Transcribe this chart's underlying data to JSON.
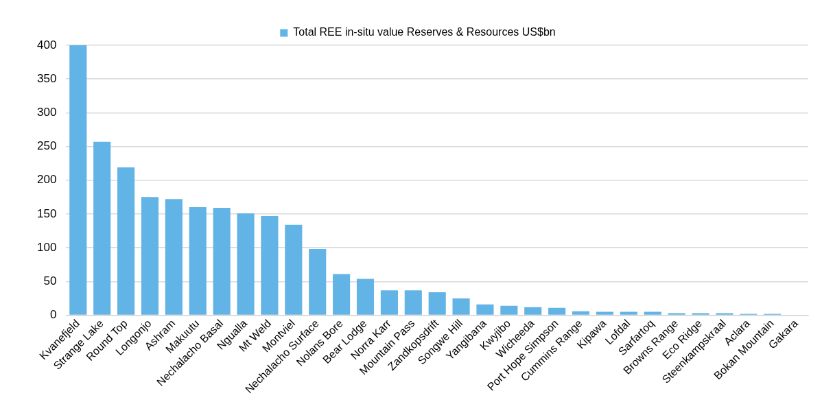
{
  "chart_data": {
    "type": "bar",
    "categories": [
      "Kvanefjeld",
      "Strange Lake",
      "Round Top",
      "Longonjo",
      "Ashram",
      "Makuutu",
      "Nechalacho Basal",
      "Ngualla",
      "Mt Weld",
      "Montviel",
      "Nechalacho Surface",
      "Nolans Bore",
      "Bear Lodge",
      "Norra Karr",
      "Mountain Pass",
      "Zandkopsdrift",
      "Songwe Hill",
      "Yangibana",
      "Kwyjibo",
      "Wicheeda",
      "Port Hope Simpson",
      "Cummins Range",
      "Kipawa",
      "Lofdal",
      "Sarfartoq",
      "Browns Range",
      "Eco Ridge",
      "Steenkampskraal",
      "Aclara",
      "Bokan Mountain",
      "Gakara"
    ],
    "series": [
      {
        "name": "Total REE in-situ value Reserves & Resources US$bn",
        "color": "#62b3e6",
        "values": [
          400,
          257,
          219,
          175,
          172,
          160,
          159,
          151,
          147,
          134,
          98,
          61,
          54,
          37,
          37,
          34,
          25,
          16,
          14,
          12,
          11,
          6,
          5,
          5,
          5,
          3,
          3,
          3,
          2,
          2,
          0
        ]
      }
    ],
    "ylim": [
      0,
      400
    ],
    "yticks": [
      0,
      50,
      100,
      150,
      200,
      250,
      300,
      350,
      400
    ],
    "grid": "y",
    "legend": "top"
  }
}
